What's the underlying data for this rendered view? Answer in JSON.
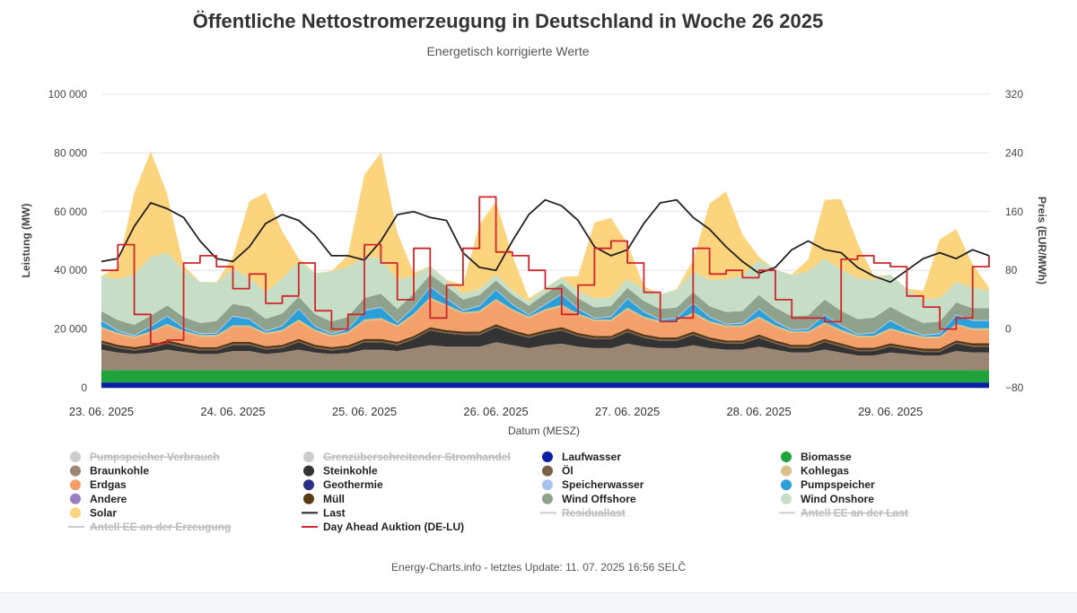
{
  "chart_data": {
    "type": "area",
    "title": "Öffentliche Nettostromerzeugung in Deutschland in Woche 26 2025",
    "subtitle": "Energetisch korrigierte Werte",
    "xlabel": "Datum (MESZ)",
    "ylabel": "Leistung (MW)",
    "ylabel2": "Preis (EUR/MWh)",
    "ylim": [
      0,
      100000
    ],
    "ylim2": [
      -80,
      320
    ],
    "yticks": [
      "0",
      "20 000",
      "40 000",
      "60 000",
      "80 000",
      "100 000"
    ],
    "yticks2": [
      "−80",
      "0",
      "80",
      "160",
      "240",
      "320"
    ],
    "x_tick_labels": [
      "23. 06. 2025",
      "24. 06. 2025",
      "25. 06. 2025",
      "26. 06. 2025",
      "27. 06. 2025",
      "28. 06. 2025",
      "29. 06. 2025"
    ],
    "x": [
      0,
      0.125,
      0.25,
      0.375,
      0.5,
      0.625,
      0.75,
      0.875,
      1,
      1.125,
      1.25,
      1.375,
      1.5,
      1.625,
      1.75,
      1.875,
      2,
      2.125,
      2.25,
      2.375,
      2.5,
      2.625,
      2.75,
      2.875,
      3,
      3.125,
      3.25,
      3.375,
      3.5,
      3.625,
      3.75,
      3.875,
      4,
      4.125,
      4.25,
      4.375,
      4.5,
      4.625,
      4.75,
      4.875,
      5,
      5.125,
      5.25,
      5.375,
      5.5,
      5.625,
      5.75,
      5.875,
      6,
      6.125,
      6.25,
      6.375,
      6.5,
      6.625,
      6.75
    ],
    "x_unit": "days since 23. 06. 2025 00:00",
    "grid": true,
    "legend_position": "bottom",
    "series": [
      {
        "name": "Laufwasser",
        "color": "#0a1fa8",
        "values": [
          1800,
          1800,
          1800,
          1800,
          1800,
          1800,
          1800,
          1800,
          1800,
          1800,
          1800,
          1800,
          1800,
          1800,
          1800,
          1800,
          1800,
          1800,
          1800,
          1800,
          1800,
          1800,
          1800,
          1800,
          1800,
          1800,
          1800,
          1800,
          1800,
          1800,
          1800,
          1800,
          1800,
          1800,
          1800,
          1800,
          1800,
          1800,
          1800,
          1800,
          1800,
          1800,
          1800,
          1800,
          1800,
          1800,
          1800,
          1800,
          1800,
          1800,
          1800,
          1800,
          1800,
          1800,
          1800
        ]
      },
      {
        "name": "Biomasse",
        "color": "#1fa33a",
        "values": [
          4200,
          4200,
          4200,
          4200,
          4200,
          4200,
          4200,
          4200,
          4200,
          4200,
          4200,
          4200,
          4200,
          4200,
          4200,
          4200,
          4200,
          4200,
          4200,
          4200,
          4200,
          4200,
          4200,
          4200,
          4200,
          4200,
          4200,
          4200,
          4200,
          4200,
          4200,
          4200,
          4200,
          4200,
          4200,
          4200,
          4200,
          4200,
          4200,
          4200,
          4200,
          4200,
          4200,
          4200,
          4200,
          4200,
          4200,
          4200,
          4200,
          4200,
          4200,
          4200,
          4200,
          4200,
          4200
        ]
      },
      {
        "name": "Braunkohle",
        "color": "#9b8573",
        "values": [
          7000,
          6000,
          5500,
          6000,
          7000,
          6200,
          5500,
          5500,
          6500,
          6500,
          5500,
          6000,
          7000,
          6000,
          5500,
          5800,
          7000,
          7000,
          6500,
          7500,
          8500,
          8000,
          8000,
          8000,
          9500,
          8500,
          7500,
          8500,
          9000,
          8000,
          7500,
          7500,
          9000,
          8000,
          7500,
          7500,
          8500,
          7500,
          7000,
          7000,
          8000,
          7000,
          6000,
          6000,
          7000,
          6000,
          5000,
          5000,
          6000,
          5500,
          5000,
          5000,
          6500,
          6000,
          6000
        ]
      },
      {
        "name": "Steinkohle",
        "color": "#333333",
        "values": [
          2000,
          1500,
          1200,
          1500,
          2000,
          1500,
          1200,
          1200,
          2000,
          2000,
          1500,
          1500,
          2500,
          1500,
          1200,
          1500,
          2500,
          2500,
          2000,
          3000,
          5000,
          4500,
          4000,
          4000,
          5000,
          4000,
          3500,
          4000,
          4500,
          3500,
          3000,
          3000,
          4000,
          3000,
          2500,
          2500,
          3500,
          2500,
          2000,
          2000,
          3000,
          2000,
          1500,
          1500,
          2500,
          2000,
          1500,
          1500,
          2000,
          1500,
          1200,
          1200,
          2500,
          2000,
          2000
        ]
      },
      {
        "name": "Öl",
        "color": "#7a6045",
        "values": [
          300,
          300,
          300,
          300,
          300,
          300,
          300,
          300,
          300,
          300,
          300,
          300,
          300,
          300,
          300,
          300,
          300,
          300,
          300,
          300,
          300,
          300,
          300,
          300,
          300,
          300,
          300,
          300,
          300,
          300,
          300,
          300,
          300,
          300,
          300,
          300,
          300,
          300,
          300,
          300,
          300,
          300,
          300,
          300,
          300,
          300,
          300,
          300,
          300,
          300,
          300,
          300,
          300,
          300,
          300
        ]
      },
      {
        "name": "Geothermie",
        "color": "#2a2f8a",
        "values": [
          50,
          50,
          50,
          50,
          50,
          50,
          50,
          50,
          50,
          50,
          50,
          50,
          50,
          50,
          50,
          50,
          50,
          50,
          50,
          50,
          50,
          50,
          50,
          50,
          50,
          50,
          50,
          50,
          50,
          50,
          50,
          50,
          50,
          50,
          50,
          50,
          50,
          50,
          50,
          50,
          50,
          50,
          50,
          50,
          50,
          50,
          50,
          50,
          50,
          50,
          50,
          50,
          50,
          50,
          50
        ]
      },
      {
        "name": "Müll",
        "color": "#5a3a12",
        "values": [
          800,
          800,
          800,
          800,
          800,
          800,
          800,
          800,
          800,
          800,
          800,
          800,
          800,
          800,
          800,
          800,
          800,
          800,
          800,
          800,
          800,
          800,
          800,
          800,
          800,
          800,
          800,
          800,
          800,
          800,
          800,
          800,
          800,
          800,
          800,
          800,
          800,
          800,
          800,
          800,
          800,
          800,
          800,
          800,
          800,
          800,
          800,
          800,
          800,
          800,
          800,
          800,
          800,
          800,
          800
        ]
      },
      {
        "name": "Erdgas",
        "color": "#f4a06b",
        "values": [
          4000,
          3500,
          3000,
          4000,
          5000,
          4000,
          3500,
          3500,
          5000,
          5000,
          4000,
          4500,
          6000,
          4500,
          3500,
          4000,
          6000,
          6500,
          5000,
          7000,
          9500,
          8000,
          6000,
          6500,
          8000,
          6500,
          5500,
          6500,
          7000,
          6000,
          5000,
          5000,
          6500,
          5500,
          5000,
          5000,
          6000,
          5000,
          4500,
          4500,
          5500,
          4500,
          4000,
          4000,
          5000,
          4000,
          3500,
          3500,
          4500,
          4000,
          3500,
          3500,
          5000,
          4500,
          4500
        ]
      },
      {
        "name": "Kohlegas",
        "color": "#d9c089",
        "values": [
          600,
          600,
          600,
          600,
          600,
          600,
          600,
          600,
          600,
          600,
          600,
          600,
          600,
          600,
          600,
          600,
          600,
          600,
          600,
          600,
          600,
          600,
          600,
          600,
          600,
          600,
          600,
          600,
          600,
          600,
          600,
          600,
          600,
          600,
          600,
          600,
          600,
          600,
          600,
          600,
          600,
          600,
          600,
          600,
          600,
          600,
          600,
          600,
          600,
          600,
          600,
          600,
          600,
          600,
          600
        ]
      },
      {
        "name": "Pumpspeicher",
        "color": "#2a9fd8",
        "values": [
          2000,
          500,
          200,
          1500,
          2500,
          800,
          300,
          500,
          3000,
          2000,
          400,
          1200,
          3500,
          1000,
          300,
          800,
          3000,
          3500,
          800,
          2000,
          3500,
          2000,
          500,
          1500,
          3000,
          1500,
          400,
          1500,
          3500,
          1500,
          300,
          800,
          3000,
          1500,
          300,
          800,
          3000,
          1200,
          300,
          600,
          2500,
          1200,
          300,
          600,
          2500,
          1200,
          300,
          800,
          2500,
          1000,
          300,
          800,
          3000,
          2500,
          2500
        ]
      },
      {
        "name": "Speicherwasser",
        "color": "#a9c3ef",
        "values": [
          300,
          300,
          300,
          300,
          300,
          300,
          300,
          300,
          300,
          300,
          300,
          300,
          300,
          300,
          300,
          300,
          300,
          300,
          300,
          300,
          300,
          300,
          300,
          300,
          300,
          300,
          300,
          300,
          300,
          300,
          300,
          300,
          300,
          300,
          300,
          300,
          300,
          300,
          300,
          300,
          300,
          300,
          300,
          300,
          300,
          300,
          300,
          300,
          300,
          300,
          300,
          300,
          300,
          300,
          300
        ]
      },
      {
        "name": "Wind Offshore",
        "color": "#8fa38c",
        "values": [
          3000,
          3500,
          3500,
          3500,
          3500,
          3500,
          3500,
          4000,
          4000,
          4000,
          4000,
          4000,
          4000,
          4000,
          4000,
          4000,
          4000,
          4500,
          4500,
          4500,
          4000,
          4000,
          3500,
          3500,
          3000,
          3000,
          3000,
          3500,
          3500,
          3500,
          3500,
          3500,
          3500,
          3500,
          3500,
          3500,
          3500,
          3500,
          4000,
          4000,
          4500,
          4500,
          4500,
          4500,
          5000,
          5000,
          5000,
          5000,
          4500,
          4500,
          4000,
          4000,
          4000,
          4000,
          4000
        ]
      },
      {
        "name": "Wind Onshore",
        "color": "#c6dec5",
        "values": [
          12000,
          14000,
          17000,
          20000,
          18000,
          16000,
          14000,
          13000,
          12000,
          10000,
          9000,
          12000,
          12000,
          14000,
          17000,
          17000,
          14000,
          12000,
          10000,
          6000,
          3000,
          2000,
          2000,
          2000,
          2000,
          1500,
          1500,
          2000,
          2000,
          2500,
          3000,
          3000,
          3000,
          4000,
          5000,
          6000,
          7000,
          9000,
          11000,
          12000,
          12000,
          13000,
          14000,
          15000,
          14000,
          14000,
          14000,
          13000,
          11000,
          9000,
          8000,
          8000,
          7000,
          7000,
          6000
        ]
      },
      {
        "name": "Solar",
        "color": "#fcd47e",
        "values": [
          0,
          4000,
          28000,
          36000,
          20000,
          1500,
          0,
          200,
          4000,
          26000,
          34000,
          16000,
          1000,
          0,
          200,
          4000,
          28000,
          36000,
          16000,
          1000,
          0,
          200,
          3000,
          22000,
          25000,
          12000,
          1000,
          0,
          200,
          5000,
          26000,
          27000,
          12000,
          1000,
          0,
          200,
          4000,
          26000,
          30000,
          14000,
          1000,
          0,
          200,
          4000,
          20000,
          24000,
          12000,
          1000,
          0,
          200,
          3000,
          20000,
          18000,
          8000,
          1000
        ]
      }
    ],
    "lines": [
      {
        "name": "Last",
        "color": "#222222",
        "axis": "left",
        "values": [
          43000,
          44000,
          55000,
          63000,
          61000,
          58000,
          50000,
          44000,
          43000,
          48000,
          56000,
          59000,
          57000,
          52000,
          45000,
          45000,
          43500,
          50000,
          59000,
          60000,
          58000,
          57000,
          46000,
          41000,
          40000,
          50000,
          59000,
          64000,
          62000,
          57000,
          48000,
          45000,
          47000,
          56000,
          63000,
          64000,
          58000,
          54000,
          48000,
          43000,
          39000,
          41000,
          47000,
          50000,
          47000,
          46000,
          41000,
          38000,
          36000,
          40000,
          44000,
          46000,
          44000,
          47000,
          45000
        ]
      },
      {
        "name": "Day Ahead Auktion (DE-LU)",
        "color": "#d2252b",
        "axis": "right",
        "values": [
          80,
          115,
          20,
          -20,
          -15,
          90,
          100,
          85,
          55,
          75,
          35,
          45,
          90,
          25,
          0,
          20,
          115,
          90,
          40,
          110,
          15,
          60,
          110,
          180,
          105,
          100,
          80,
          55,
          20,
          60,
          110,
          120,
          90,
          50,
          10,
          15,
          110,
          75,
          80,
          70,
          80,
          40,
          15,
          15,
          10,
          95,
          100,
          90,
          85,
          45,
          30,
          0,
          15,
          85,
          100
        ]
      }
    ],
    "legend": [
      {
        "name": "Pumpspeicher Verbrauch",
        "symbol": "dot",
        "color": "#cccccc",
        "visible": false
      },
      {
        "name": "Grenzüberschreitender Stromhandel",
        "symbol": "dot",
        "color": "#cccccc",
        "visible": false
      },
      {
        "name": "Laufwasser",
        "symbol": "dot",
        "color": "#0a1fa8",
        "visible": true
      },
      {
        "name": "Biomasse",
        "symbol": "dot",
        "color": "#1fa33a",
        "visible": true
      },
      {
        "name": "Braunkohle",
        "symbol": "dot",
        "color": "#9b8573",
        "visible": true
      },
      {
        "name": "Steinkohle",
        "symbol": "dot",
        "color": "#333333",
        "visible": true
      },
      {
        "name": "Öl",
        "symbol": "dot",
        "color": "#7a6045",
        "visible": true
      },
      {
        "name": "Kohlegas",
        "symbol": "dot",
        "color": "#d9c089",
        "visible": true
      },
      {
        "name": "Erdgas",
        "symbol": "dot",
        "color": "#f4a06b",
        "visible": true
      },
      {
        "name": "Geothermie",
        "symbol": "dot",
        "color": "#2a2f8a",
        "visible": true
      },
      {
        "name": "Speicherwasser",
        "symbol": "dot",
        "color": "#a9c3ef",
        "visible": true
      },
      {
        "name": "Pumpspeicher",
        "symbol": "dot",
        "color": "#2a9fd8",
        "visible": true
      },
      {
        "name": "Andere",
        "symbol": "dot",
        "color": "#9a7fc4",
        "visible": true
      },
      {
        "name": "Müll",
        "symbol": "dot",
        "color": "#5a3a12",
        "visible": true
      },
      {
        "name": "Wind Offshore",
        "symbol": "dot",
        "color": "#8fa38c",
        "visible": true
      },
      {
        "name": "Wind Onshore",
        "symbol": "dot",
        "color": "#c6dec5",
        "visible": true
      },
      {
        "name": "Solar",
        "symbol": "dot",
        "color": "#fcd47e",
        "visible": true
      },
      {
        "name": "Last",
        "symbol": "line",
        "color": "#222222",
        "visible": true
      },
      {
        "name": "Residuallast",
        "symbol": "line",
        "color": "#cccccc",
        "visible": false
      },
      {
        "name": "Antell EE an der Last",
        "symbol": "line",
        "color": "#cccccc",
        "visible": false
      },
      {
        "name": "Antell EE an der Erzeugung",
        "symbol": "line",
        "color": "#cccccc",
        "visible": false
      },
      {
        "name": "Day Ahead Auktion (DE-LU)",
        "symbol": "line",
        "color": "#d2252b",
        "visible": true
      }
    ],
    "credit": "Energy-Charts.info - letztes Update: 11. 07. 2025 16:56 SELČ"
  }
}
